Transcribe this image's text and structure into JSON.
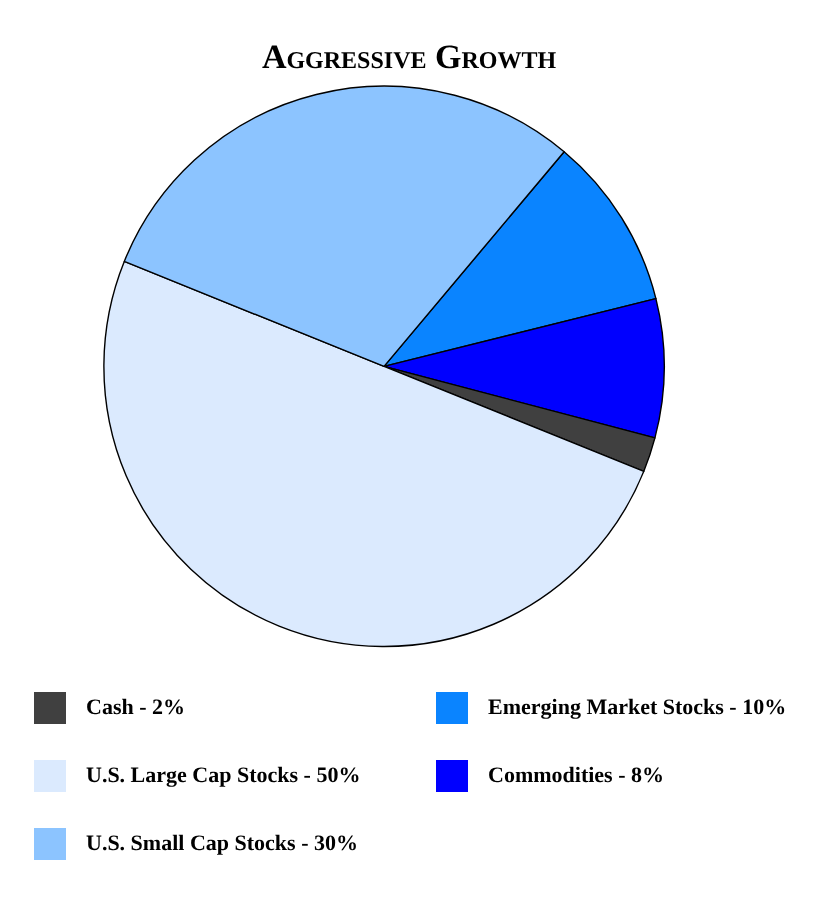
{
  "chart_data": {
    "type": "pie",
    "title": "Aggressive Growth",
    "categories": [
      "Emerging Market Stocks - 10%",
      "Commodities - 8%",
      "Cash - 2%",
      "U.S. Large Cap Stocks - 50%",
      "U.S. Small Cap Stocks - 30%"
    ],
    "values": [
      10,
      8,
      2,
      50,
      30
    ],
    "colors": [
      "#0a84ff",
      "#0000ff",
      "#404040",
      "#dbeafe",
      "#8cc4ff"
    ],
    "legend": "bottom"
  }
}
